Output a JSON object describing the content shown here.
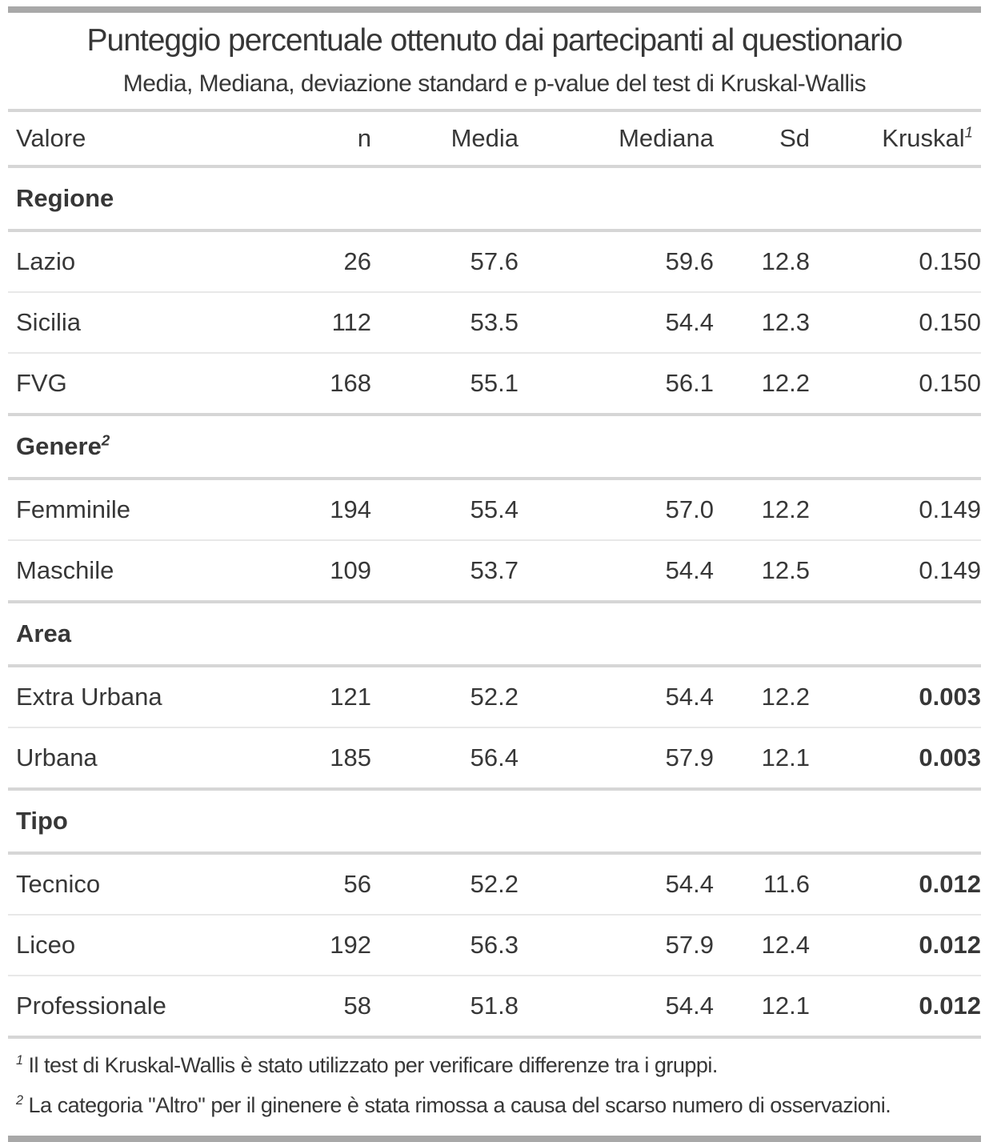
{
  "colors": {
    "accent_bar": "#A8A8A8",
    "text": "#373737",
    "rule_strong": "#D6D6D6",
    "rule_light": "#E8E8E8"
  },
  "chart_data": {
    "type": "table",
    "title": "Punteggio percentuale ottenuto dai partecipanti al questionario",
    "subtitle": "Media, Mediana, deviazione standard e p-value del test di Kruskal-Wallis",
    "columns": {
      "valore": "Valore",
      "n": "n",
      "media": "Media",
      "mediana": "Mediana",
      "sd": "Sd",
      "kruskal": "Kruskal",
      "kruskal_footnote_mark": "1"
    },
    "groups": [
      {
        "label": "Regione",
        "footnote_mark": "",
        "rows": [
          {
            "valore": "Lazio",
            "n": "26",
            "media": "57.6",
            "mediana": "59.6",
            "sd": "12.8",
            "kruskal": "0.150",
            "kruskal_bold": false
          },
          {
            "valore": "Sicilia",
            "n": "112",
            "media": "53.5",
            "mediana": "54.4",
            "sd": "12.3",
            "kruskal": "0.150",
            "kruskal_bold": false
          },
          {
            "valore": "FVG",
            "n": "168",
            "media": "55.1",
            "mediana": "56.1",
            "sd": "12.2",
            "kruskal": "0.150",
            "kruskal_bold": false
          }
        ]
      },
      {
        "label": "Genere",
        "footnote_mark": "2",
        "rows": [
          {
            "valore": "Femminile",
            "n": "194",
            "media": "55.4",
            "mediana": "57.0",
            "sd": "12.2",
            "kruskal": "0.149",
            "kruskal_bold": false
          },
          {
            "valore": "Maschile",
            "n": "109",
            "media": "53.7",
            "mediana": "54.4",
            "sd": "12.5",
            "kruskal": "0.149",
            "kruskal_bold": false
          }
        ]
      },
      {
        "label": "Area",
        "footnote_mark": "",
        "rows": [
          {
            "valore": "Extra Urbana",
            "n": "121",
            "media": "52.2",
            "mediana": "54.4",
            "sd": "12.2",
            "kruskal": "0.003",
            "kruskal_bold": true
          },
          {
            "valore": "Urbana",
            "n": "185",
            "media": "56.4",
            "mediana": "57.9",
            "sd": "12.1",
            "kruskal": "0.003",
            "kruskal_bold": true
          }
        ]
      },
      {
        "label": "Tipo",
        "footnote_mark": "",
        "rows": [
          {
            "valore": "Tecnico",
            "n": "56",
            "media": "52.2",
            "mediana": "54.4",
            "sd": "11.6",
            "kruskal": "0.012",
            "kruskal_bold": true
          },
          {
            "valore": "Liceo",
            "n": "192",
            "media": "56.3",
            "mediana": "57.9",
            "sd": "12.4",
            "kruskal": "0.012",
            "kruskal_bold": true
          },
          {
            "valore": "Professionale",
            "n": "58",
            "media": "51.8",
            "mediana": "54.4",
            "sd": "12.1",
            "kruskal": "0.012",
            "kruskal_bold": true
          }
        ]
      }
    ],
    "footnotes": [
      {
        "mark": "1",
        "text": "Il test di Kruskal-Wallis è stato utilizzato per verificare differenze tra i gruppi."
      },
      {
        "mark": "2",
        "text": "La categoria \"Altro\" per il ginenere è stata rimossa a causa del scarso numero di osservazioni."
      }
    ]
  }
}
